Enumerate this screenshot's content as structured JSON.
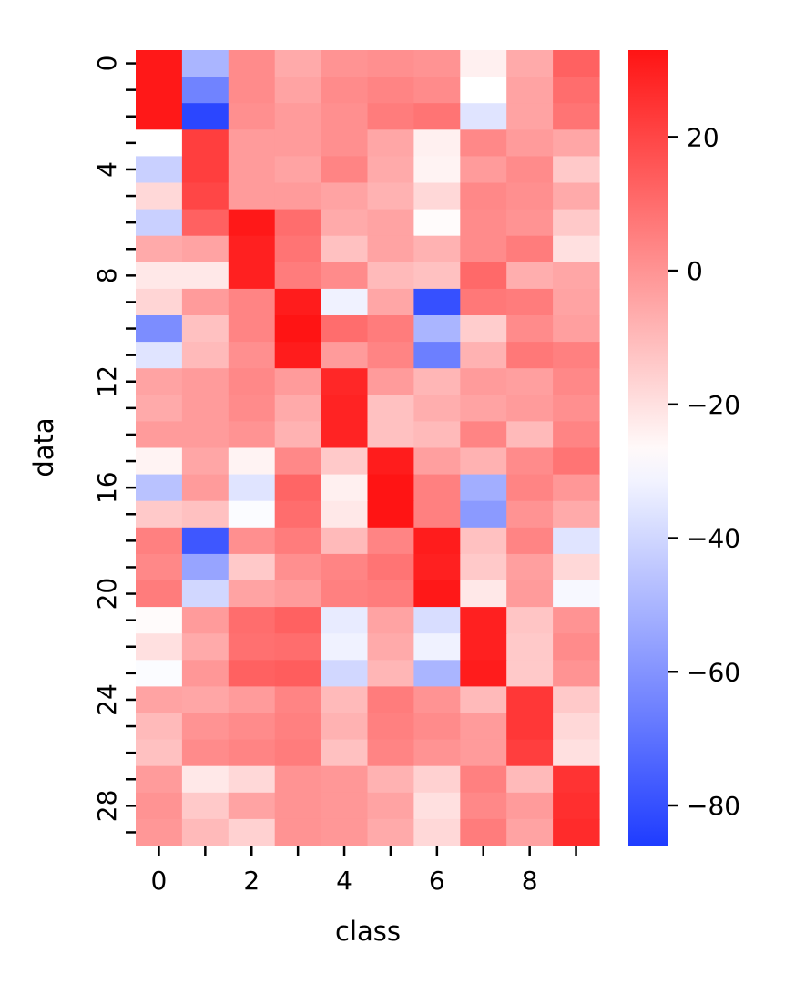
{
  "chart_data": {
    "type": "heatmap",
    "title": "",
    "xlabel": "class",
    "ylabel": "data",
    "x_tick_labels": [
      "0",
      "2",
      "4",
      "6",
      "8"
    ],
    "y_tick_labels": [
      "0",
      "4",
      "8",
      "12",
      "16",
      "20",
      "24",
      "28"
    ],
    "colorbar_tick_labels": [
      "20",
      "0",
      "−20",
      "−40",
      "−60",
      "−80"
    ],
    "colorbar_ticks": [
      20,
      0,
      -20,
      -40,
      -60,
      -80
    ],
    "vmin": -86,
    "vmax": 33,
    "vcenter": -28,
    "colormap": [
      "#1f3cff",
      "#ffffff",
      "#ff1414"
    ],
    "grid": false,
    "values": [
      [
        32,
        -50,
        2,
        -6,
        0,
        1,
        0,
        -24,
        -6,
        13
      ],
      [
        32,
        -65,
        2,
        -4,
        2,
        4,
        2,
        -28,
        -4,
        10
      ],
      [
        32,
        -83,
        1,
        -2,
        1,
        6,
        8,
        -36,
        -4,
        8
      ],
      [
        -28,
        22,
        -2,
        -2,
        1,
        -5,
        -24,
        3,
        -2,
        -5
      ],
      [
        -42,
        22,
        -2,
        -4,
        4,
        -6,
        -25,
        -2,
        2,
        -14
      ],
      [
        -18,
        20,
        -2,
        -2,
        -4,
        -8,
        -18,
        3,
        1,
        -6
      ],
      [
        -42,
        13,
        32,
        10,
        -6,
        -4,
        -27,
        2,
        0,
        -14
      ],
      [
        -6,
        -4,
        30,
        8,
        -12,
        -4,
        -8,
        2,
        6,
        -20
      ],
      [
        -22,
        -22,
        30,
        6,
        2,
        -10,
        -12,
        11,
        -7,
        -5
      ],
      [
        -17,
        -2,
        4,
        31,
        -32,
        -5,
        -80,
        7,
        6,
        -4
      ],
      [
        -62,
        -12,
        4,
        33,
        10,
        6,
        -50,
        -15,
        2,
        -3
      ],
      [
        -36,
        -10,
        1,
        31,
        -2,
        4,
        -66,
        -8,
        7,
        5
      ],
      [
        -4,
        -2,
        3,
        -2,
        28,
        -2,
        -9,
        -2,
        -3,
        3
      ],
      [
        -6,
        -2,
        2,
        -6,
        29,
        -12,
        -7,
        -4,
        -2,
        1
      ],
      [
        -2,
        -2,
        0,
        -8,
        29,
        -12,
        -10,
        4,
        -10,
        4
      ],
      [
        -25,
        -5,
        -25,
        3,
        -14,
        31,
        -3,
        -8,
        2,
        8
      ],
      [
        -46,
        -2,
        -36,
        12,
        -24,
        33,
        5,
        -52,
        4,
        -1
      ],
      [
        -14,
        -12,
        -29,
        10,
        -22,
        33,
        5,
        -58,
        0,
        -6
      ],
      [
        5,
        -78,
        1,
        6,
        -10,
        4,
        31,
        -12,
        4,
        -36
      ],
      [
        3,
        -55,
        -14,
        1,
        4,
        8,
        30,
        -14,
        -3,
        -18
      ],
      [
        6,
        -40,
        -4,
        -2,
        5,
        6,
        32,
        -22,
        -2,
        -30
      ],
      [
        -27,
        -2,
        10,
        13,
        -34,
        -4,
        -38,
        30,
        -13,
        0
      ],
      [
        -20,
        -6,
        9,
        10,
        -32,
        -6,
        -32,
        30,
        -14,
        2
      ],
      [
        -29,
        -1,
        13,
        14,
        -40,
        -9,
        -50,
        31,
        -14,
        0
      ],
      [
        -4,
        -5,
        -2,
        4,
        -10,
        6,
        0,
        -10,
        24,
        -14
      ],
      [
        -10,
        0,
        2,
        5,
        -8,
        5,
        2,
        -2,
        24,
        -18
      ],
      [
        -12,
        2,
        4,
        6,
        -12,
        4,
        0,
        -2,
        22,
        -20
      ],
      [
        -2,
        -22,
        -18,
        0,
        -1,
        -8,
        -16,
        5,
        -10,
        25
      ],
      [
        0,
        -14,
        -4,
        0,
        -1,
        -4,
        -20,
        3,
        -2,
        26
      ],
      [
        -1,
        -10,
        -16,
        0,
        -1,
        -6,
        -18,
        6,
        -4,
        27
      ]
    ]
  }
}
